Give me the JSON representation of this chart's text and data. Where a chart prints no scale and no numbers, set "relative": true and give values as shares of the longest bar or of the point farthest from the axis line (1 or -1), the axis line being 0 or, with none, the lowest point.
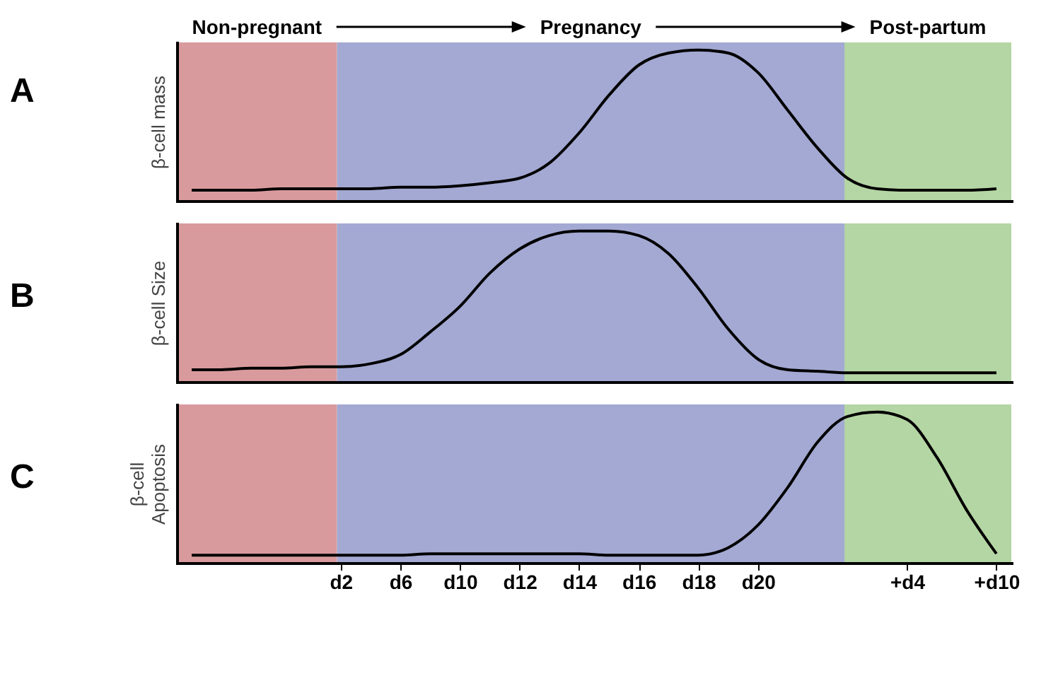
{
  "chart_data": [
    {
      "type": "line",
      "title": "A",
      "ylabel": "β-cell mass",
      "relative": true,
      "tick_labels": false,
      "marker": "none",
      "line_style": "solid",
      "annotations": [
        "Non-pregnant",
        "Pregnancy",
        "Post-partum"
      ],
      "categories": [
        null,
        null,
        null,
        null,
        null,
        null,
        null,
        null,
        null,
        null,
        null,
        null,
        null,
        null,
        null,
        null,
        null,
        null,
        null,
        null,
        null,
        null,
        null,
        null,
        null,
        null,
        null,
        null
      ],
      "series": [
        {
          "color": "#000000",
          "values": [
            0.07,
            0.07,
            0.07,
            0.08,
            0.08,
            0.08,
            0.08,
            0.09,
            0.09,
            0.1,
            0.12,
            0.15,
            0.25,
            0.45,
            0.7,
            0.9,
            0.98,
            1,
            0.98,
            0.85,
            0.6,
            0.35,
            0.15,
            0.08,
            0.07,
            0.07,
            0.07,
            0.08
          ]
        }
      ]
    },
    {
      "type": "line",
      "title": "B",
      "ylabel": "β-cell Size",
      "relative": true,
      "tick_labels": false,
      "marker": "none",
      "line_style": "solid",
      "categories": [
        null,
        null,
        null,
        null,
        null,
        null,
        null,
        null,
        null,
        null,
        null,
        null,
        null,
        null,
        null,
        null,
        null,
        null,
        null,
        null,
        null,
        null,
        null,
        null,
        null,
        null,
        null,
        null
      ],
      "series": [
        {
          "color": "#000000",
          "values": [
            0.08,
            0.08,
            0.09,
            0.09,
            0.1,
            0.1,
            0.12,
            0.18,
            0.33,
            0.5,
            0.72,
            0.88,
            0.97,
            1,
            1,
            0.97,
            0.85,
            0.62,
            0.35,
            0.15,
            0.08,
            0.07,
            0.06,
            0.06,
            0.06,
            0.06,
            0.06,
            0.06
          ]
        }
      ]
    },
    {
      "type": "line",
      "title": "C",
      "ylabel": "β-cell\nApoptosis",
      "relative": true,
      "tick_labels": "x",
      "marker": "none",
      "line_style": "solid",
      "categories": [
        null,
        null,
        null,
        null,
        null,
        "d2",
        null,
        "d6",
        null,
        "d10",
        null,
        "d12",
        null,
        "d14",
        null,
        "d16",
        null,
        "d18",
        null,
        "d20",
        null,
        null,
        null,
        null,
        "+d4",
        null,
        null,
        "+d10"
      ],
      "series": [
        {
          "color": "#000000",
          "values": [
            0.05,
            0.05,
            0.05,
            0.05,
            0.05,
            0.05,
            0.05,
            0.05,
            0.06,
            0.06,
            0.06,
            0.06,
            0.06,
            0.06,
            0.05,
            0.05,
            0.05,
            0.05,
            0.1,
            0.25,
            0.5,
            0.8,
            0.97,
            1,
            0.95,
            0.7,
            0.35,
            0.06
          ]
        }
      ]
    }
  ]
}
